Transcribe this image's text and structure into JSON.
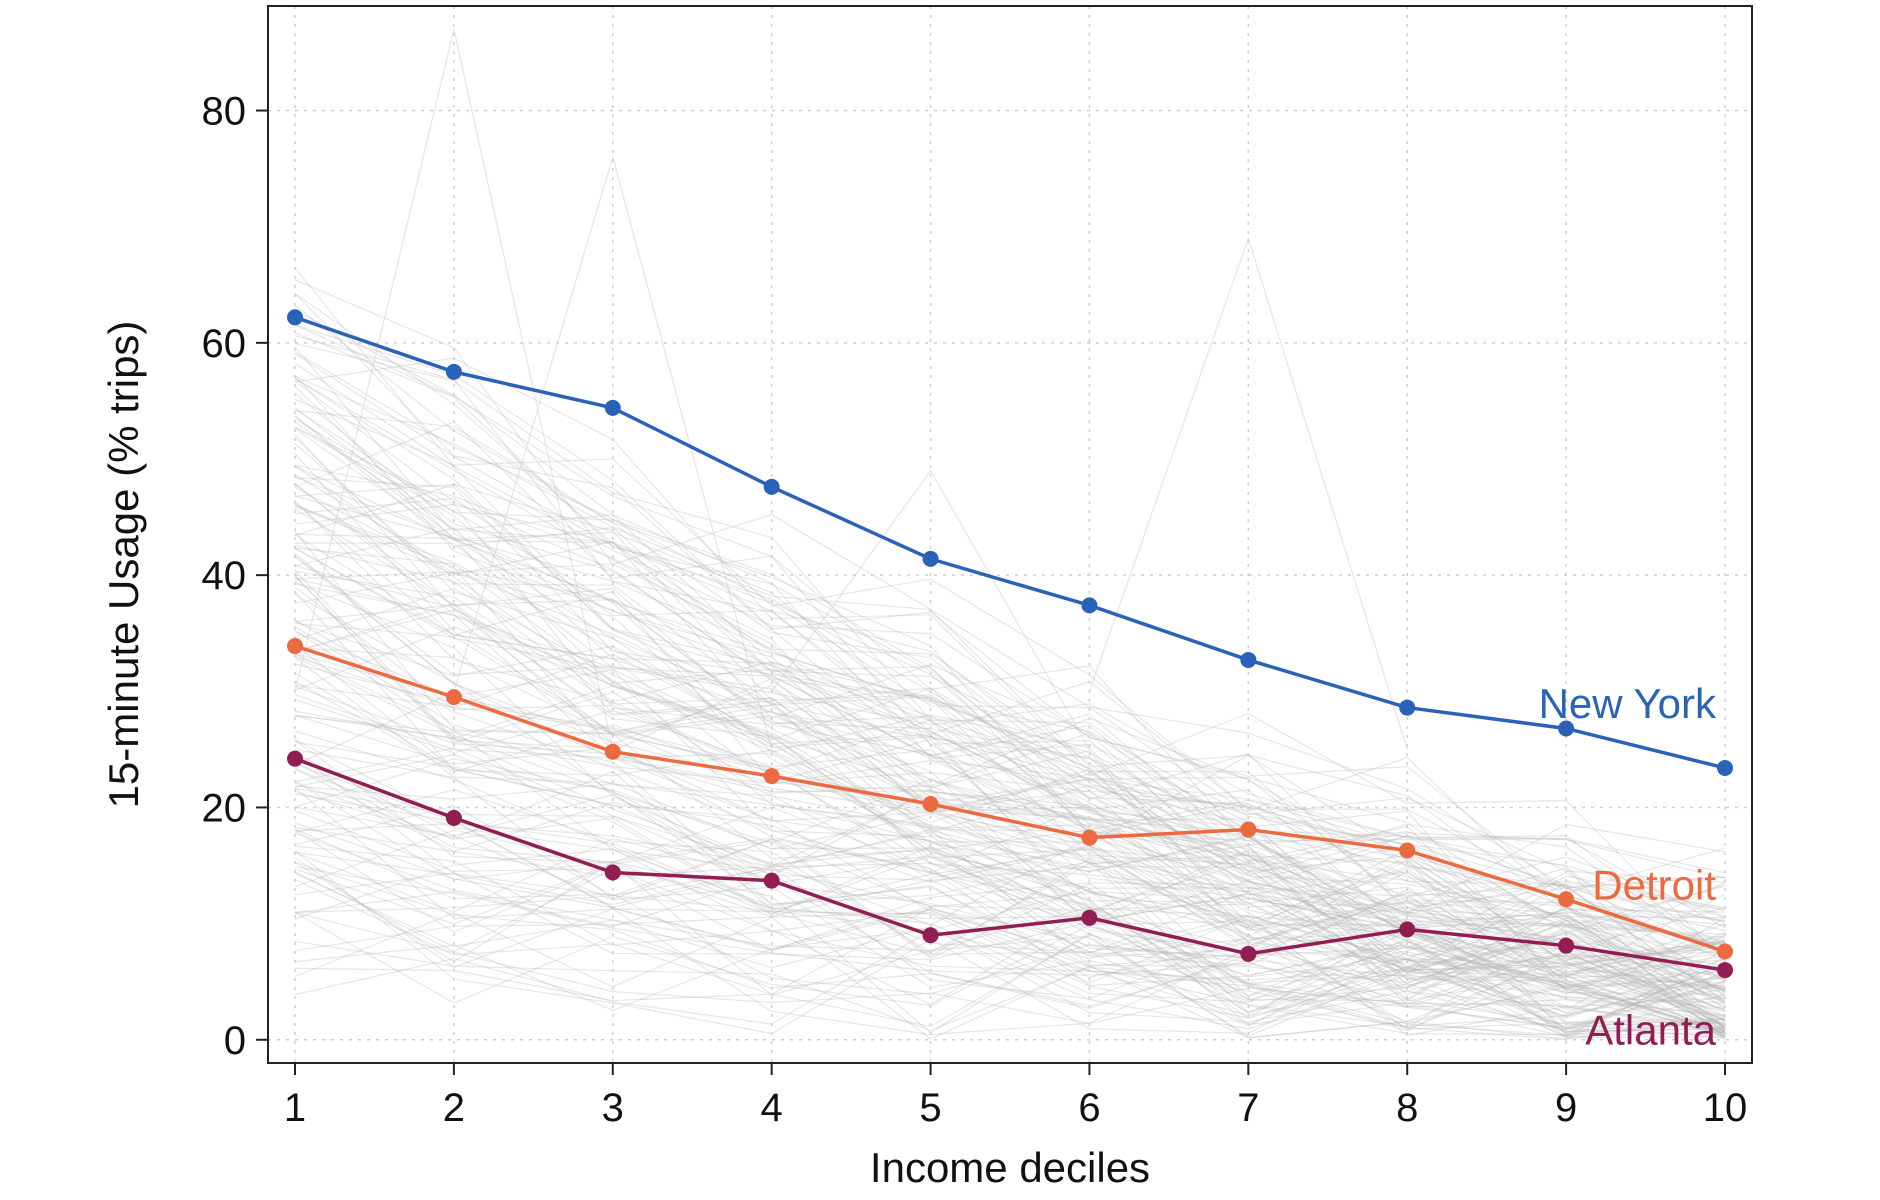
{
  "chart_data": {
    "type": "line",
    "xlabel": "Income deciles",
    "ylabel": "15-minute Usage (% trips)",
    "x": [
      1,
      2,
      3,
      4,
      5,
      6,
      7,
      8,
      9,
      10
    ],
    "xlim": [
      0.83,
      10.17
    ],
    "ylim": [
      -2,
      89
    ],
    "yticks": [
      0,
      20,
      40,
      60,
      80
    ],
    "xticks": [
      1,
      2,
      3,
      4,
      5,
      6,
      7,
      8,
      9,
      10
    ],
    "grid": true,
    "background_series": "many gray lines for other cities",
    "series": [
      {
        "name": "New York",
        "color": "#2a62b8",
        "values": [
          62.2,
          57.5,
          54.4,
          47.6,
          41.4,
          37.4,
          32.7,
          28.6,
          26.8,
          23.4
        ]
      },
      {
        "name": "Detroit",
        "color": "#eb6a3f",
        "values": [
          33.9,
          29.5,
          24.8,
          22.7,
          20.3,
          17.4,
          18.1,
          16.3,
          12.1,
          7.6
        ]
      },
      {
        "name": "Atlanta",
        "color": "#921d52",
        "values": [
          24.2,
          19.1,
          14.4,
          13.7,
          9.0,
          10.5,
          7.4,
          9.5,
          8.1,
          6.0
        ]
      }
    ]
  }
}
